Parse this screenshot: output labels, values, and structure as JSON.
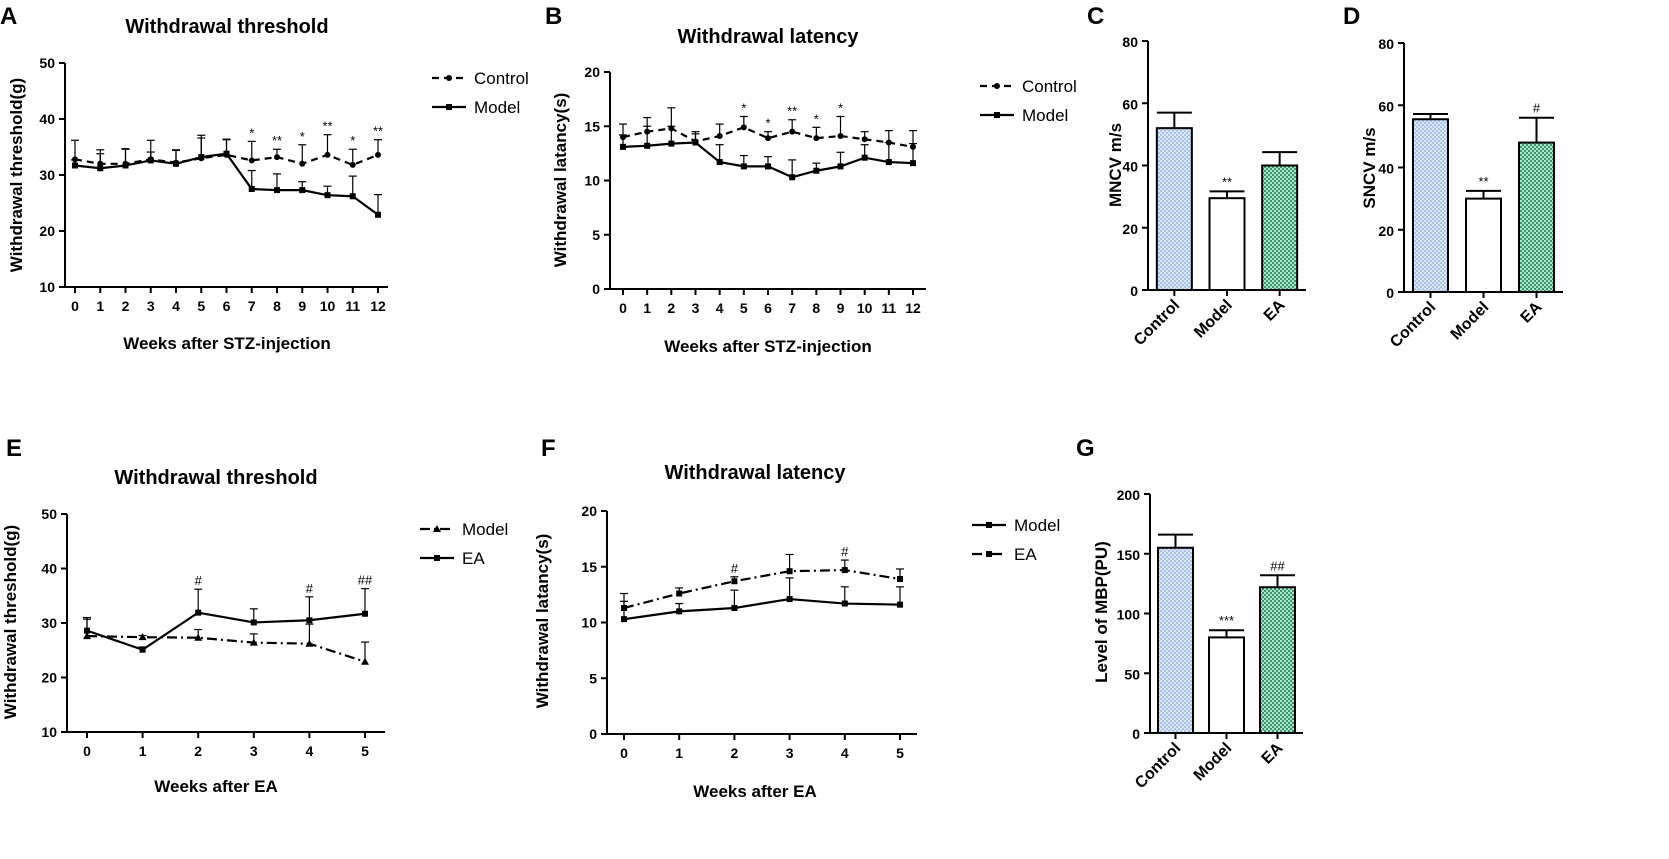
{
  "colors": {
    "axis": "#000000",
    "control_bar": "#a9c4e8",
    "ea_bar": "#2e9a6a",
    "model_bar": "#ffffff"
  },
  "chart_data": [
    {
      "id": "A",
      "type": "line",
      "panel_label": "A",
      "title": "Withdrawal threshold",
      "xlabel": "Weeks after STZ-injection",
      "ylabel": "Withdrawal threshold(g)",
      "x": [
        0,
        1,
        2,
        3,
        4,
        5,
        6,
        7,
        8,
        9,
        10,
        11,
        12
      ],
      "ylim": [
        10,
        50
      ],
      "yticks": [
        10,
        20,
        30,
        40,
        50
      ],
      "legend": [
        "Control",
        "Model"
      ],
      "series": [
        {
          "name": "Control",
          "style": "dashed",
          "marker": "circle",
          "values": [
            32.8,
            32.0,
            32.0,
            32.8,
            32.2,
            33.0,
            33.6,
            32.6,
            33.2,
            32.0,
            33.6,
            31.8,
            33.6
          ],
          "errors": [
            3.4,
            2.5,
            2.7,
            3.4,
            2.2,
            4.1,
            2.7,
            3.4,
            1.4,
            3.4,
            3.6,
            2.8,
            2.7
          ]
        },
        {
          "name": "Model",
          "style": "solid",
          "marker": "square",
          "values": [
            31.7,
            31.2,
            31.7,
            32.6,
            32.0,
            33.2,
            33.8,
            27.5,
            27.3,
            27.3,
            26.4,
            26.2,
            22.9
          ],
          "errors": [
            1.0,
            2.6,
            2.9,
            1.5,
            2.5,
            3.4,
            2.6,
            3.3,
            2.9,
            1.5,
            1.6,
            3.6,
            3.6
          ]
        }
      ],
      "annotations": [
        {
          "x": 7,
          "text": "*"
        },
        {
          "x": 8,
          "text": "**"
        },
        {
          "x": 9,
          "text": "*"
        },
        {
          "x": 10,
          "text": "**"
        },
        {
          "x": 11,
          "text": "*"
        },
        {
          "x": 12,
          "text": "**"
        }
      ]
    },
    {
      "id": "B",
      "type": "line",
      "panel_label": "B",
      "title": "Withdrawal latency",
      "xlabel": "Weeks after STZ-injection",
      "ylabel": "Withdrawal latancy(s)",
      "x": [
        0,
        1,
        2,
        3,
        4,
        5,
        6,
        7,
        8,
        9,
        10,
        11,
        12
      ],
      "ylim": [
        0,
        20
      ],
      "yticks": [
        0,
        5,
        10,
        15,
        20
      ],
      "legend": [
        "Control",
        "Model"
      ],
      "series": [
        {
          "name": "Control",
          "style": "dashed",
          "marker": "circle",
          "values": [
            14.0,
            14.5,
            14.8,
            13.6,
            14.1,
            14.9,
            13.9,
            14.5,
            13.9,
            14.1,
            13.8,
            13.5,
            13.1
          ],
          "errors": [
            1.2,
            1.3,
            1.9,
            0.9,
            1.1,
            1.0,
            0.6,
            1.1,
            1.0,
            1.8,
            0.7,
            1.1,
            1.5
          ]
        },
        {
          "name": "Model",
          "style": "solid",
          "marker": "square",
          "values": [
            13.1,
            13.2,
            13.4,
            13.5,
            11.7,
            11.3,
            11.3,
            10.3,
            10.9,
            11.3,
            12.1,
            11.7,
            11.6
          ],
          "errors": [
            1.1,
            1.8,
            1.6,
            0.8,
            1.6,
            1.0,
            0.9,
            1.6,
            0.7,
            1.3,
            1.2,
            1.8,
            1.8
          ]
        }
      ],
      "annotations": [
        {
          "x": 5,
          "text": "*"
        },
        {
          "x": 6,
          "text": "*"
        },
        {
          "x": 7,
          "text": "**"
        },
        {
          "x": 8,
          "text": "*"
        },
        {
          "x": 9,
          "text": "*"
        }
      ]
    },
    {
      "id": "C",
      "type": "bar",
      "panel_label": "C",
      "ylabel": "MNCV m/s",
      "categories": [
        "Control",
        "Model",
        "EA"
      ],
      "values": [
        52,
        29.5,
        40
      ],
      "errors": [
        5,
        2.2,
        4.3
      ],
      "ylim": [
        0,
        80
      ],
      "yticks": [
        0,
        20,
        40,
        60,
        80
      ],
      "annotations": [
        {
          "index": 1,
          "text": "**"
        }
      ]
    },
    {
      "id": "D",
      "type": "bar",
      "panel_label": "D",
      "ylabel": "SNCV m/s",
      "categories": [
        "Control",
        "Model",
        "EA"
      ],
      "values": [
        55.5,
        30,
        48
      ],
      "errors": [
        1.7,
        2.5,
        8
      ],
      "ylim": [
        0,
        80
      ],
      "yticks": [
        0,
        20,
        40,
        60,
        80
      ],
      "annotations": [
        {
          "index": 1,
          "text": "**"
        },
        {
          "index": 2,
          "text": "#"
        }
      ]
    },
    {
      "id": "E",
      "type": "line",
      "panel_label": "E",
      "title": "Withdrawal threshold",
      "xlabel": "Weeks after EA",
      "ylabel": "Withdrawal threshold(g)",
      "x": [
        0,
        1,
        2,
        3,
        4,
        5
      ],
      "ylim": [
        10,
        50
      ],
      "yticks": [
        10,
        20,
        30,
        40,
        50
      ],
      "legend": [
        "Model",
        "EA"
      ],
      "series": [
        {
          "name": "Model",
          "style": "dashdot",
          "marker": "triangle",
          "values": [
            27.6,
            27.4,
            27.3,
            26.4,
            26.2,
            22.9
          ],
          "errors": [
            3.4,
            0.3,
            1.5,
            1.6,
            3.6,
            3.6
          ]
        },
        {
          "name": "EA",
          "style": "solid",
          "marker": "square",
          "values": [
            28.6,
            25.1,
            31.9,
            30.1,
            30.5,
            31.7
          ],
          "errors": [
            2.1,
            0.5,
            4.3,
            2.5,
            4.3,
            4.6
          ]
        }
      ],
      "annotations": [
        {
          "x": 2,
          "text": "#"
        },
        {
          "x": 4,
          "text": "#"
        },
        {
          "x": 5,
          "text": "##"
        }
      ]
    },
    {
      "id": "F",
      "type": "line",
      "panel_label": "F",
      "title": "Withdrawal latency",
      "xlabel": "Weeks after EA",
      "ylabel": "Withdrawal latancy(s)",
      "x": [
        0,
        1,
        2,
        3,
        4,
        5
      ],
      "ylim": [
        0,
        20
      ],
      "yticks": [
        0,
        5,
        10,
        15,
        20
      ],
      "legend": [
        "Model",
        "EA"
      ],
      "series": [
        {
          "name": "Model",
          "style": "solid",
          "marker": "square",
          "values": [
            10.3,
            11.0,
            11.3,
            12.1,
            11.7,
            11.6
          ],
          "errors": [
            1.6,
            0.7,
            1.6,
            1.9,
            1.5,
            1.6
          ]
        },
        {
          "name": "EA",
          "style": "dashdot",
          "marker": "square",
          "values": [
            11.3,
            12.6,
            13.7,
            14.6,
            14.7,
            13.9
          ],
          "errors": [
            1.3,
            0.5,
            0.4,
            1.5,
            0.9,
            0.9
          ]
        }
      ],
      "annotations": [
        {
          "x": 2,
          "text": "#"
        },
        {
          "x": 4,
          "text": "#"
        }
      ]
    },
    {
      "id": "G",
      "type": "bar",
      "panel_label": "G",
      "ylabel": "Level of MBP(PU)",
      "categories": [
        "Control",
        "Model",
        "EA"
      ],
      "values": [
        155,
        80,
        122
      ],
      "errors": [
        11,
        6,
        10
      ],
      "ylim": [
        0,
        200
      ],
      "yticks": [
        0,
        50,
        100,
        150,
        200
      ],
      "annotations": [
        {
          "index": 1,
          "text": "***"
        },
        {
          "index": 2,
          "text": "##"
        }
      ]
    }
  ]
}
